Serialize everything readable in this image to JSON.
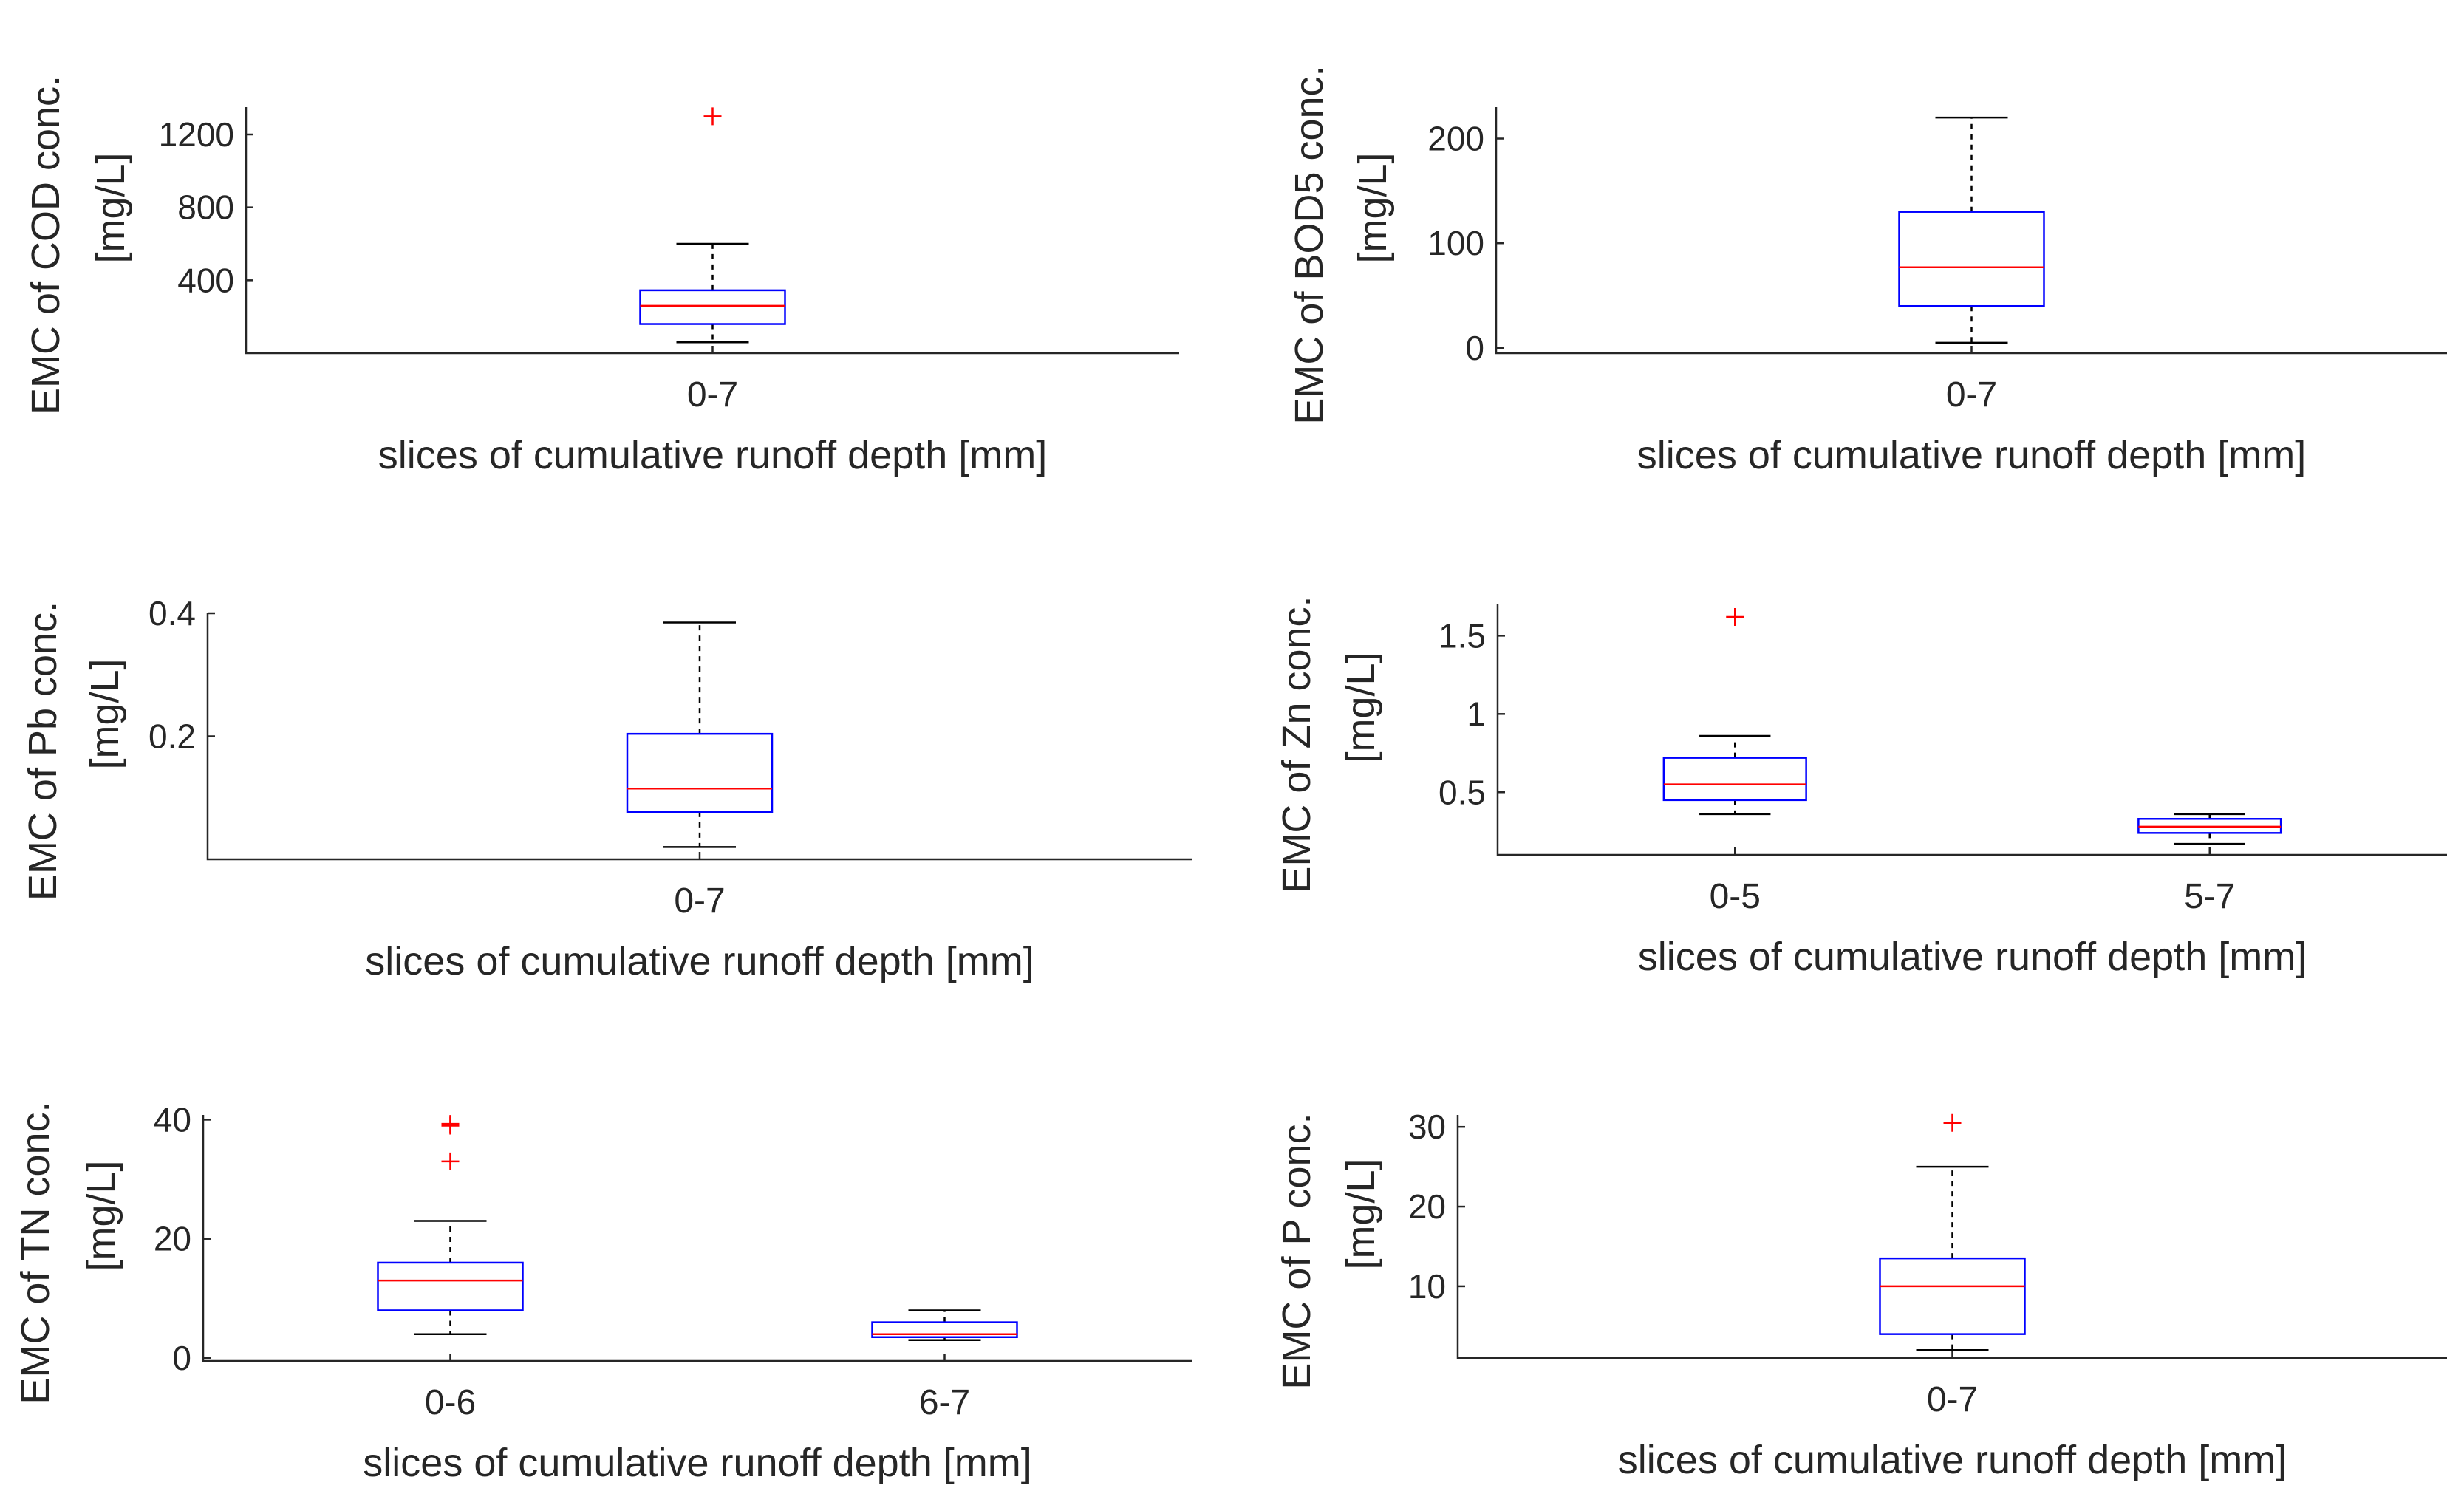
{
  "chart_data": [
    {
      "type": "box",
      "ylabel_line1": "EMC of COD conc.",
      "ylabel_line2": "[mg/L]",
      "xlabel": "slices of cumulative runoff depth [mm]",
      "ylim": [
        0,
        1350
      ],
      "yticks": [
        400,
        800,
        1200
      ],
      "groups": [
        {
          "category": "0-7",
          "whisker_low": 60,
          "q1": 160,
          "median": 260,
          "q3": 345,
          "whisker_high": 600,
          "outliers": [
            1300
          ]
        }
      ]
    },
    {
      "type": "box",
      "ylabel_line1": "EMC of BOD5 conc.",
      "ylabel_line2": "[mg/L]",
      "xlabel": "slices of cumulative runoff depth [mm]",
      "ylim": [
        -5,
        230
      ],
      "yticks": [
        0,
        100,
        200
      ],
      "groups": [
        {
          "category": "0-7",
          "whisker_low": 5,
          "q1": 40,
          "median": 77,
          "q3": 130,
          "whisker_high": 220,
          "outliers": []
        }
      ]
    },
    {
      "type": "box",
      "ylabel_line1": "EMC of Pb conc.",
      "ylabel_line2": "[mg/L]",
      "xlabel": "slices of cumulative runoff depth [mm]",
      "ylim": [
        0,
        0.4
      ],
      "yticks": [
        0.2,
        0.4
      ],
      "groups": [
        {
          "category": "0-7",
          "whisker_low": 0.02,
          "q1": 0.077,
          "median": 0.115,
          "q3": 0.204,
          "whisker_high": 0.385,
          "outliers": []
        }
      ]
    },
    {
      "type": "box",
      "ylabel_line1": "EMC of Zn conc.",
      "ylabel_line2": "[mg/L]",
      "xlabel": "slices of cumulative runoff depth [mm]",
      "ylim": [
        0.1,
        1.7
      ],
      "yticks": [
        0.5,
        1,
        1.5
      ],
      "groups": [
        {
          "category": "0-5",
          "whisker_low": 0.36,
          "q1": 0.45,
          "median": 0.55,
          "q3": 0.72,
          "whisker_high": 0.86,
          "outliers": [
            1.62
          ]
        },
        {
          "category": "5-7",
          "whisker_low": 0.17,
          "q1": 0.24,
          "median": 0.28,
          "q3": 0.33,
          "whisker_high": 0.36,
          "outliers": []
        }
      ]
    },
    {
      "type": "box",
      "ylabel_line1": "EMC of TN conc.",
      "ylabel_line2": "[mg/L]",
      "xlabel": "slices of cumulative runoff depth [mm]",
      "ylim": [
        -0.5,
        40.8
      ],
      "yticks": [
        0,
        20,
        40
      ],
      "groups": [
        {
          "category": "0-6",
          "whisker_low": 4,
          "q1": 8,
          "median": 13,
          "q3": 16,
          "whisker_high": 23,
          "outliers": [
            33,
            39,
            39.3
          ]
        },
        {
          "category": "6-7",
          "whisker_low": 3,
          "q1": 3.5,
          "median": 4,
          "q3": 6,
          "whisker_high": 8,
          "outliers": []
        }
      ]
    },
    {
      "type": "box",
      "ylabel_line1": "EMC of P conc.",
      "ylabel_line2": "[mg/L]",
      "xlabel": "slices of cumulative runoff depth [mm]",
      "ylim": [
        1,
        31.5
      ],
      "yticks": [
        10,
        20,
        30
      ],
      "groups": [
        {
          "category": "0-7",
          "whisker_low": 2,
          "q1": 4,
          "median": 10,
          "q3": 13.5,
          "whisker_high": 25,
          "outliers": [
            30.5
          ]
        }
      ]
    }
  ]
}
